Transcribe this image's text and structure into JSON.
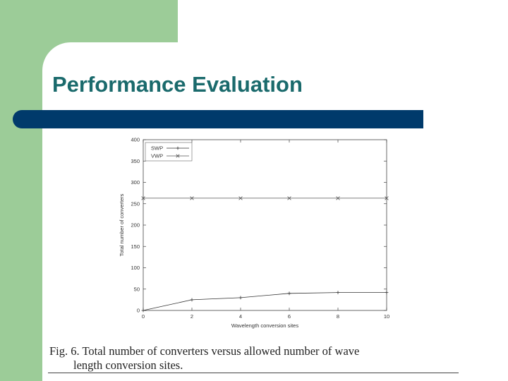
{
  "slide": {
    "title": "Performance Evaluation",
    "colors": {
      "left_band": "#9ccc98",
      "title_text": "#1a6a6c",
      "title_bar": "#003a6b"
    }
  },
  "chart_data": {
    "type": "line",
    "title": "",
    "xlabel": "Wavelength conversion sites",
    "ylabel": "Total number of converters",
    "x": [
      0,
      2,
      4,
      6,
      8,
      10
    ],
    "xlim": [
      0,
      10
    ],
    "ylim": [
      0,
      400
    ],
    "xticks": [
      0,
      2,
      4,
      6,
      8,
      10
    ],
    "yticks": [
      0,
      50,
      100,
      150,
      200,
      250,
      300,
      350,
      400
    ],
    "grid": false,
    "legend_position": "top-left",
    "series": [
      {
        "name": "SWP",
        "marker": "+",
        "values": [
          0,
          25,
          30,
          40,
          42,
          42
        ]
      },
      {
        "name": "VWP",
        "marker": "x",
        "values": [
          263,
          263,
          263,
          263,
          263,
          263
        ]
      }
    ]
  },
  "caption": {
    "line1": "Fig. 6.   Total number of converters versus allowed number of wave",
    "line2": "length conversion sites."
  }
}
